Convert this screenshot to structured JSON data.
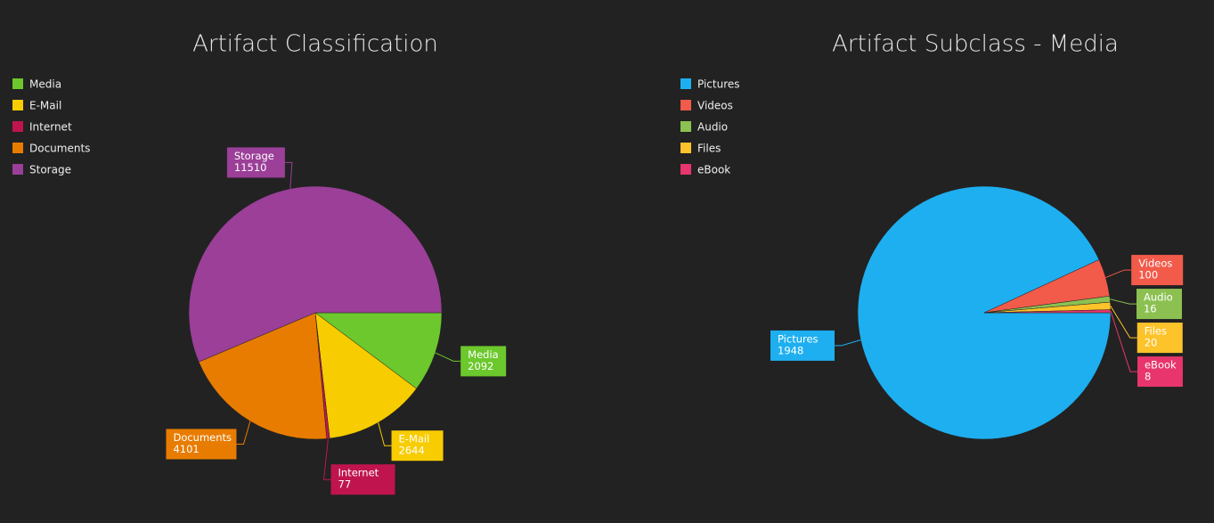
{
  "chart_data": [
    {
      "type": "pie",
      "title": "Artifact Classification",
      "categories": [
        "Media",
        "E-Mail",
        "Internet",
        "Documents",
        "Storage"
      ],
      "values": [
        2092,
        2644,
        77,
        4101,
        11510
      ],
      "colors": [
        "#6cc82c",
        "#f7cc00",
        "#c0144f",
        "#e87c00",
        "#9b3f98"
      ]
    },
    {
      "type": "pie",
      "title": "Artifact Subclass - Media",
      "categories": [
        "Pictures",
        "Videos",
        "Audio",
        "Files",
        "eBook"
      ],
      "values": [
        1948,
        100,
        16,
        20,
        8
      ],
      "colors": [
        "#1eaff0",
        "#f25a4a",
        "#8cc152",
        "#fcc32a",
        "#e8356d"
      ]
    }
  ]
}
